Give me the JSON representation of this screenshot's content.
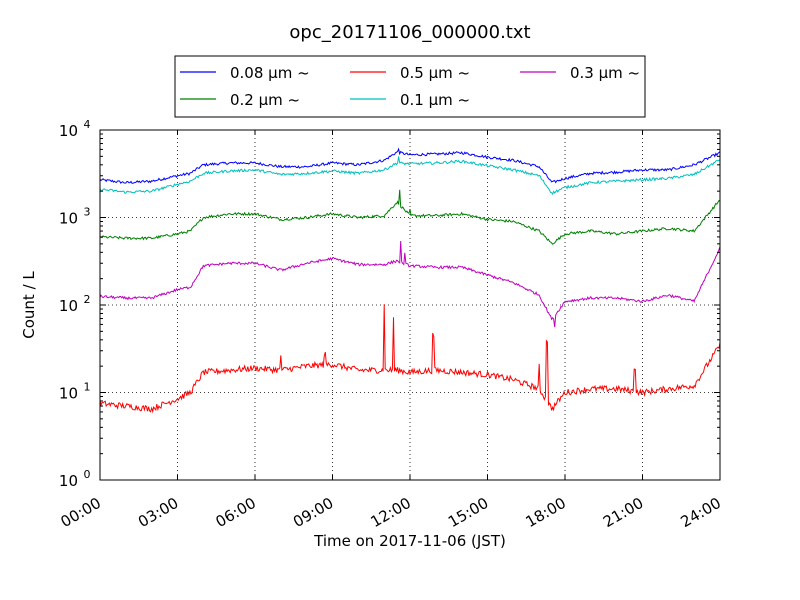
{
  "chart_data": {
    "type": "line",
    "title": "opc_20171106_000000.txt",
    "xlabel": "Time on 2017-11-06 (JST)",
    "ylabel": "Count / L",
    "y_scale": "log",
    "ylim": [
      1,
      10000
    ],
    "xlim_hours": [
      0,
      24
    ],
    "x_ticks": [
      "00:00",
      "03:00",
      "06:00",
      "09:00",
      "12:00",
      "15:00",
      "18:00",
      "21:00",
      "24:00"
    ],
    "y_ticks": [
      {
        "base": "10",
        "exp": "0"
      },
      {
        "base": "10",
        "exp": "1"
      },
      {
        "base": "10",
        "exp": "2"
      },
      {
        "base": "10",
        "exp": "3"
      },
      {
        "base": "10",
        "exp": "4"
      }
    ],
    "grid": true,
    "legend_position": "top-center",
    "series": [
      {
        "name": "0.08 μm ~",
        "color": "#0000ff",
        "x": [
          0,
          1,
          2,
          3,
          3.5,
          4,
          5,
          6,
          7,
          8,
          9,
          10,
          11,
          11.5,
          12,
          13,
          14,
          15,
          16,
          17,
          17.5,
          18,
          19,
          20,
          21,
          22,
          23,
          24
        ],
        "y": [
          2700,
          2500,
          2600,
          3000,
          3200,
          4000,
          4200,
          4200,
          3800,
          3800,
          4200,
          4000,
          4500,
          5600,
          5200,
          5300,
          5500,
          4900,
          4500,
          3800,
          2500,
          2800,
          3200,
          3300,
          3500,
          3500,
          4000,
          5500
        ]
      },
      {
        "name": "0.2 μm ~",
        "color": "#008000",
        "x": [
          0,
          1,
          2,
          3,
          3.5,
          4,
          5,
          6,
          7,
          8,
          9,
          10,
          11,
          11.5,
          12,
          13,
          14,
          15,
          16,
          17,
          17.5,
          18,
          19,
          20,
          21,
          22,
          23,
          24
        ],
        "y": [
          600,
          580,
          580,
          650,
          700,
          1000,
          1100,
          1100,
          950,
          1000,
          1100,
          1000,
          1050,
          1500,
          1050,
          1050,
          1100,
          950,
          900,
          700,
          500,
          650,
          700,
          650,
          700,
          750,
          700,
          1600
        ]
      },
      {
        "name": "0.5 μm ~",
        "color": "#ff0000",
        "x": [
          0,
          1,
          2,
          3,
          3.5,
          4,
          5,
          6,
          7,
          8,
          9,
          10,
          11,
          11.5,
          12,
          13,
          14,
          15,
          16,
          17,
          17.5,
          18,
          19,
          20,
          21,
          22,
          23,
          24
        ],
        "y": [
          7.5,
          7,
          6.5,
          8.5,
          10,
          17,
          18,
          19,
          18,
          20,
          21,
          18,
          18,
          18,
          17,
          18,
          17,
          16,
          14,
          11,
          6.5,
          10,
          11,
          11,
          10,
          11,
          12,
          35
        ]
      },
      {
        "name": "0.1 μm ~",
        "color": "#00bfbf",
        "x": [
          0,
          1,
          2,
          3,
          3.5,
          4,
          5,
          6,
          7,
          8,
          9,
          10,
          11,
          11.5,
          12,
          13,
          14,
          15,
          16,
          17,
          17.5,
          18,
          19,
          20,
          21,
          22,
          23,
          24
        ],
        "y": [
          2100,
          1950,
          2000,
          2400,
          2600,
          3200,
          3400,
          3500,
          3100,
          3200,
          3400,
          3200,
          3500,
          4200,
          4100,
          4200,
          4400,
          3900,
          3500,
          3000,
          1900,
          2200,
          2500,
          2600,
          2700,
          2800,
          3100,
          4600
        ]
      },
      {
        "name": "0.3 μm ~",
        "color": "#bf00bf",
        "x": [
          0,
          1,
          2,
          3,
          3.5,
          4,
          5,
          6,
          7,
          8,
          9,
          10,
          11,
          11.5,
          12,
          13,
          14,
          15,
          16,
          17,
          17.5,
          18,
          19,
          20,
          21,
          22,
          23,
          24
        ],
        "y": [
          125,
          120,
          120,
          150,
          160,
          280,
          300,
          300,
          250,
          300,
          340,
          290,
          290,
          320,
          280,
          270,
          270,
          220,
          180,
          130,
          68,
          110,
          120,
          120,
          110,
          130,
          110,
          450
        ]
      }
    ]
  }
}
